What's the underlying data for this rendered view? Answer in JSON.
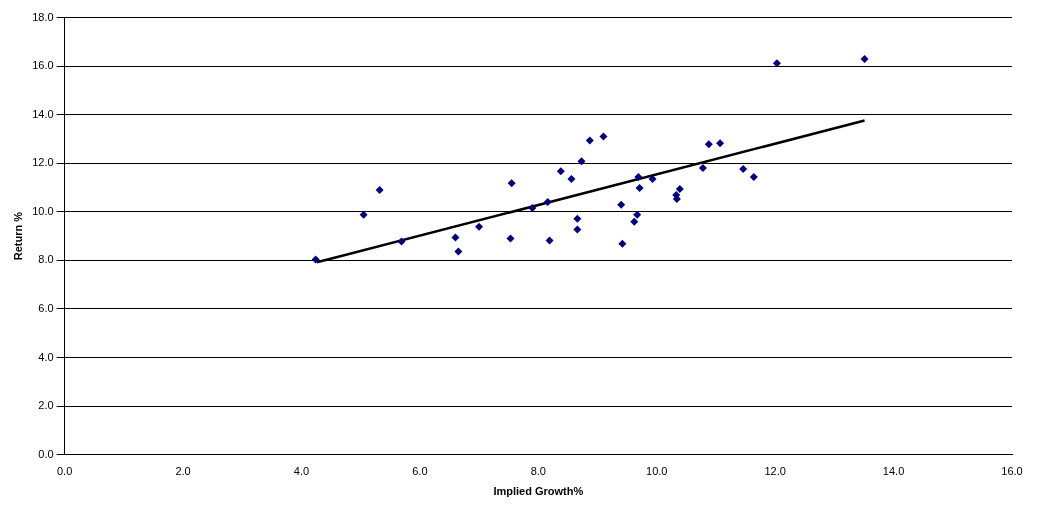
{
  "chart_data": {
    "type": "scatter",
    "xlabel": "Implied Growth%",
    "ylabel": "Return %",
    "xlim": [
      0,
      16
    ],
    "ylim": [
      0,
      18
    ],
    "xticks": [
      {
        "value": 0,
        "label": "0.0"
      },
      {
        "value": 2,
        "label": "2.0"
      },
      {
        "value": 4,
        "label": "4.0"
      },
      {
        "value": 6,
        "label": "6.0"
      },
      {
        "value": 8,
        "label": "8.0"
      },
      {
        "value": 10,
        "label": "10.0"
      },
      {
        "value": 12,
        "label": "12.0"
      },
      {
        "value": 14,
        "label": "14.0"
      },
      {
        "value": 16,
        "label": "16.0"
      }
    ],
    "yticks": [
      {
        "value": 0,
        "label": "0.0"
      },
      {
        "value": 2,
        "label": "2.0"
      },
      {
        "value": 4,
        "label": "4.0"
      },
      {
        "value": 6,
        "label": "6.0"
      },
      {
        "value": 8,
        "label": "8.0"
      },
      {
        "value": 10,
        "label": "10.0"
      },
      {
        "value": 12,
        "label": "12.0"
      },
      {
        "value": 14,
        "label": "14.0"
      },
      {
        "value": 16,
        "label": "16.0"
      },
      {
        "value": 18,
        "label": "18.0"
      }
    ],
    "grid": "y",
    "series": [
      {
        "marker": "diamond",
        "color": "#000080",
        "x": [
          4.24,
          5.05,
          5.32,
          5.69,
          6.6,
          6.65,
          7.0,
          7.55,
          7.53,
          7.9,
          8.16,
          8.19,
          8.38,
          8.56,
          8.66,
          8.66,
          8.73,
          8.87,
          9.1,
          9.4,
          9.42,
          9.62,
          9.67,
          9.69,
          9.71,
          9.93,
          10.33,
          10.34,
          10.39,
          10.78,
          10.88,
          11.07,
          11.46,
          11.64,
          12.03,
          13.51
        ],
        "values": [
          8.04,
          9.88,
          10.9,
          8.78,
          8.94,
          8.37,
          9.39,
          11.18,
          8.9,
          10.16,
          10.4,
          8.82,
          11.67,
          11.35,
          9.71,
          9.27,
          12.08,
          12.94,
          13.1,
          10.29,
          8.69,
          9.59,
          9.88,
          11.43,
          10.98,
          11.35,
          10.69,
          10.53,
          10.94,
          11.8,
          12.78,
          12.82,
          11.76,
          11.43,
          16.12,
          16.29
        ]
      },
      {
        "type": "line",
        "marker": "none",
        "color": "#000000",
        "x": [
          4.26,
          13.51
        ],
        "values": [
          7.92,
          13.76
        ]
      }
    ]
  }
}
